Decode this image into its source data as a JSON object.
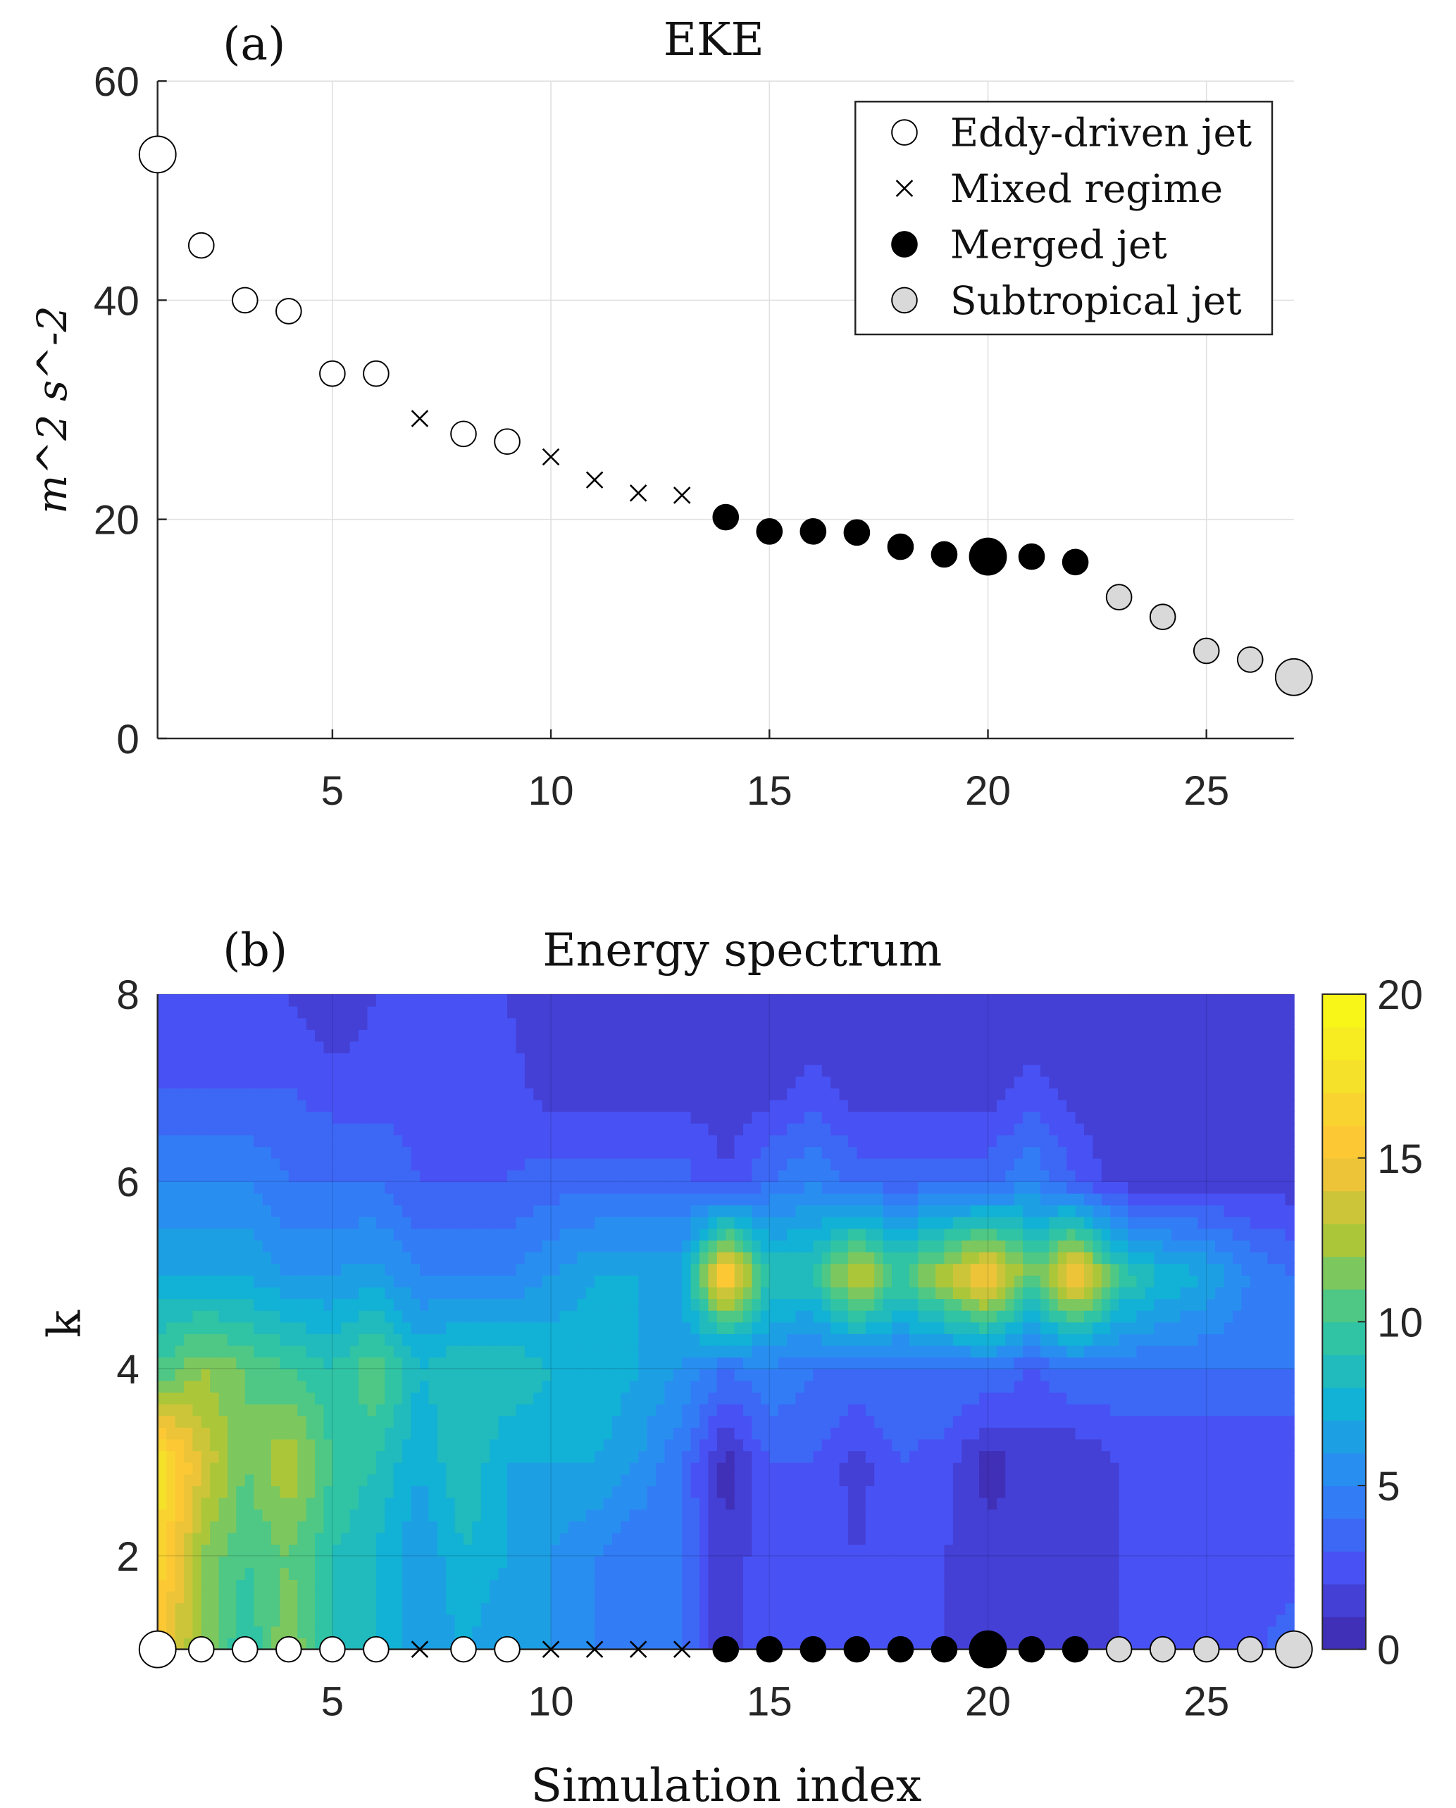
{
  "chart_data": [
    {
      "type": "scatter",
      "panel_label": "(a)",
      "title": "EKE",
      "xlabel": "",
      "ylabel": "m^2 s^-2",
      "xlim": [
        1,
        27
      ],
      "ylim": [
        0,
        60
      ],
      "xticks": [
        5,
        10,
        15,
        20,
        25
      ],
      "yticks": [
        0,
        20,
        40,
        60
      ],
      "grid": true,
      "legend_position": "top-right",
      "legend": [
        {
          "name": "Eddy-driven jet",
          "marker": "open-circle"
        },
        {
          "name": "Mixed regime",
          "marker": "x"
        },
        {
          "name": "Merged jet",
          "marker": "filled-black-circle"
        },
        {
          "name": "Subtropical jet",
          "marker": "filled-gray-circle"
        }
      ],
      "x": [
        1,
        2,
        3,
        4,
        5,
        6,
        7,
        8,
        9,
        10,
        11,
        12,
        13,
        14,
        15,
        16,
        17,
        18,
        19,
        20,
        21,
        22,
        23,
        24,
        25,
        26,
        27
      ],
      "y": [
        53.3,
        45.0,
        40.0,
        39.0,
        33.3,
        33.3,
        29.2,
        27.8,
        27.1,
        25.7,
        23.6,
        22.4,
        22.2,
        20.2,
        18.9,
        18.9,
        18.8,
        17.5,
        16.8,
        16.6,
        16.6,
        16.1,
        12.9,
        11.1,
        8.0,
        7.2,
        5.6
      ],
      "regime": [
        "eddy",
        "eddy",
        "eddy",
        "eddy",
        "eddy",
        "eddy",
        "mixed",
        "eddy",
        "eddy",
        "mixed",
        "mixed",
        "mixed",
        "mixed",
        "merged",
        "merged",
        "merged",
        "merged",
        "merged",
        "merged",
        "merged",
        "merged",
        "merged",
        "subtropical",
        "subtropical",
        "subtropical",
        "subtropical",
        "subtropical"
      ],
      "highlighted": [
        1,
        20,
        27
      ]
    },
    {
      "type": "heatmap",
      "panel_label": "(b)",
      "title": "Energy spectrum",
      "xlabel": "Simulation index",
      "ylabel": "k",
      "xlim": [
        1,
        27
      ],
      "ylim": [
        1,
        8
      ],
      "xticks": [
        5,
        10,
        15,
        20,
        25
      ],
      "yticks": [
        2,
        4,
        6,
        8
      ],
      "colorbar": {
        "range": [
          0,
          20
        ],
        "ticks": [
          0,
          5,
          10,
          15,
          20
        ],
        "colormap": "parula",
        "levels": 20
      },
      "k": [
        1,
        2,
        3,
        4,
        5,
        6,
        7,
        8
      ],
      "values": [
        [
          15,
          12,
          9,
          12,
          9,
          8,
          6,
          7,
          6,
          6,
          5,
          4,
          4,
          1,
          3,
          2.5,
          2,
          2,
          2,
          2,
          2,
          2,
          2,
          2,
          2,
          2.5,
          4
        ],
        [
          17,
          12,
          10,
          11,
          9,
          8,
          6,
          8,
          7,
          6,
          5,
          4,
          4,
          1,
          3,
          2.5,
          2,
          2.5,
          2,
          1.5,
          1,
          1,
          2,
          2,
          2,
          2,
          2
        ],
        [
          18,
          14,
          11,
          13,
          10,
          9,
          7,
          9,
          7,
          7,
          7,
          6,
          4,
          0.5,
          3,
          3,
          1.5,
          3,
          2.5,
          0.5,
          1.5,
          1,
          2,
          2,
          2,
          2,
          2
        ],
        [
          10,
          12,
          11,
          10,
          9,
          11,
          8,
          9,
          9,
          8,
          8,
          7,
          6,
          4,
          5,
          4,
          4,
          4,
          4,
          4,
          3,
          4,
          4,
          4,
          4,
          4,
          4
        ],
        [
          7,
          7,
          7,
          6,
          6,
          6.5,
          5,
          5,
          5,
          6,
          7,
          7,
          7,
          17,
          9,
          9,
          14,
          10,
          13,
          16,
          11,
          16,
          10,
          8,
          7,
          5,
          4
        ],
        [
          5,
          5,
          5,
          4,
          4,
          4,
          3,
          3,
          3,
          3.5,
          3.5,
          3.5,
          3.5,
          2,
          4,
          5,
          3.5,
          3.5,
          3.5,
          3.5,
          5,
          3,
          1.5,
          1.5,
          1.5,
          1.5,
          1.5
        ],
        [
          3,
          3,
          3,
          3,
          2.5,
          2.5,
          2.5,
          2.5,
          2.5,
          1.5,
          1.5,
          1.5,
          1.5,
          1.5,
          1.5,
          2.5,
          1.5,
          1.5,
          1.5,
          1.5,
          2.5,
          1.5,
          1,
          1,
          1,
          1,
          1
        ],
        [
          2,
          2,
          2,
          2,
          1,
          2,
          2,
          2,
          2,
          1,
          1,
          1,
          1,
          1,
          1,
          1,
          1,
          1,
          1,
          1,
          1,
          1,
          1,
          1,
          1,
          1,
          1
        ]
      ]
    }
  ],
  "colors": {
    "subtropical_fill": "#d9d9d9",
    "merged_fill": "#000000",
    "grid": "#e0e0e0"
  }
}
